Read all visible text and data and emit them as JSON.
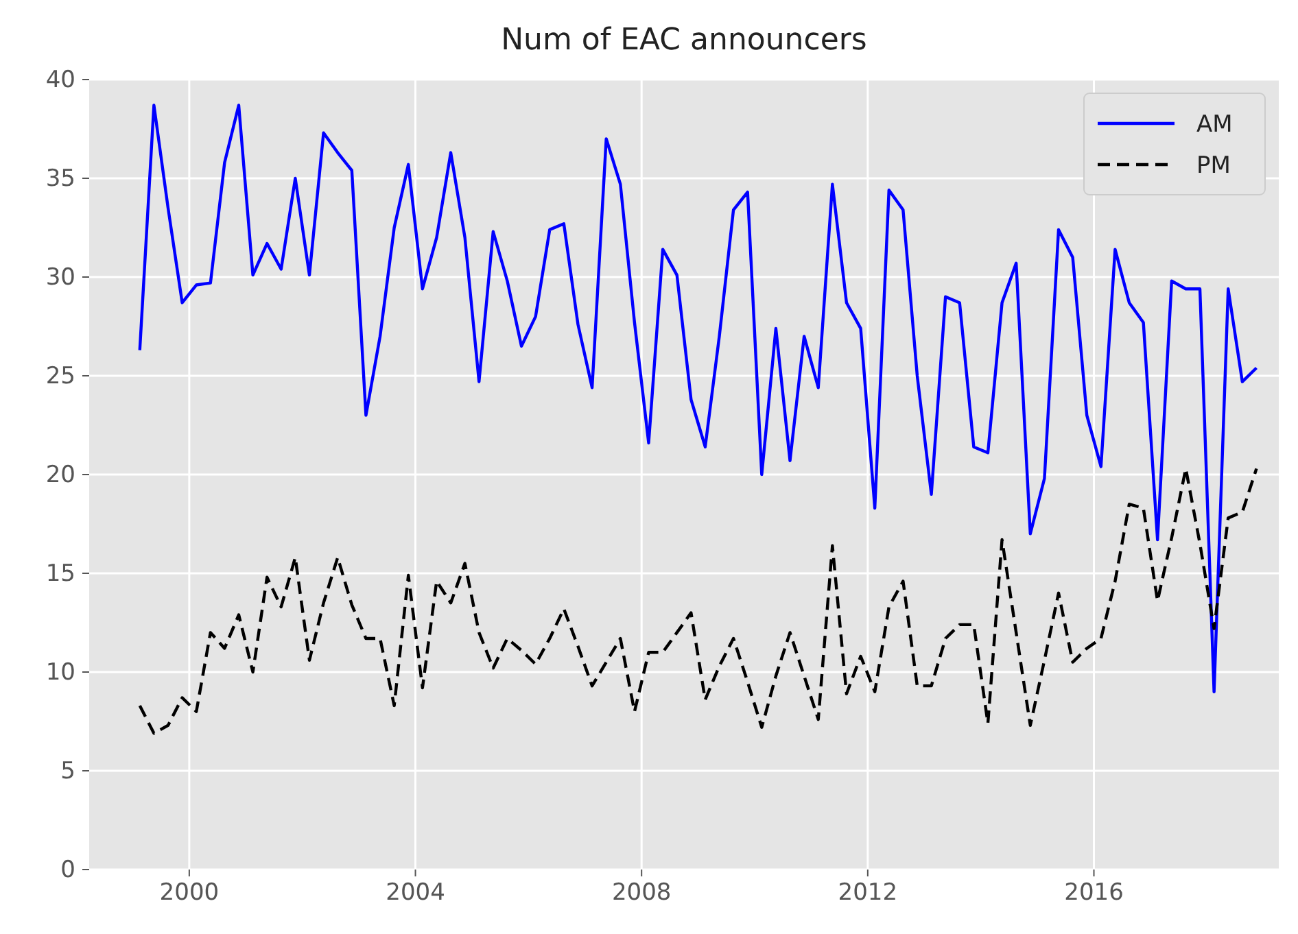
{
  "chart_data": {
    "type": "line",
    "title": "Num of EAC announcers",
    "x": [
      1999.125,
      1999.375,
      1999.625,
      1999.875,
      2000.125,
      2000.375,
      2000.625,
      2000.875,
      2001.125,
      2001.375,
      2001.625,
      2001.875,
      2002.125,
      2002.375,
      2002.625,
      2002.875,
      2003.125,
      2003.375,
      2003.625,
      2003.875,
      2004.125,
      2004.375,
      2004.625,
      2004.875,
      2005.125,
      2005.375,
      2005.625,
      2005.875,
      2006.125,
      2006.375,
      2006.625,
      2006.875,
      2007.125,
      2007.375,
      2007.625,
      2007.875,
      2008.125,
      2008.375,
      2008.625,
      2008.875,
      2009.125,
      2009.375,
      2009.625,
      2009.875,
      2010.125,
      2010.375,
      2010.625,
      2010.875,
      2011.125,
      2011.375,
      2011.625,
      2011.875,
      2012.125,
      2012.375,
      2012.625,
      2012.875,
      2013.125,
      2013.375,
      2013.625,
      2013.875,
      2014.125,
      2014.375,
      2014.625,
      2014.875,
      2015.125,
      2015.375,
      2015.625,
      2015.875,
      2016.125,
      2016.375,
      2016.625,
      2016.875,
      2017.125,
      2017.375,
      2017.625,
      2017.875,
      2018.125,
      2018.375,
      2018.625,
      2018.875
    ],
    "series": [
      {
        "name": "AM",
        "color": "#0000ff",
        "line_style": "solid",
        "values": [
          26.3,
          38.7,
          33.5,
          28.7,
          29.6,
          29.7,
          35.8,
          38.7,
          30.1,
          31.7,
          30.4,
          35.0,
          30.1,
          37.3,
          36.3,
          35.4,
          23.0,
          27.0,
          32.5,
          35.7,
          29.4,
          32.0,
          36.3,
          32.0,
          24.7,
          32.3,
          29.8,
          26.5,
          28.0,
          32.4,
          32.7,
          27.6,
          24.4,
          37.0,
          34.7,
          27.7,
          21.6,
          31.4,
          30.1,
          23.8,
          21.4,
          27.0,
          33.4,
          34.3,
          20.0,
          27.4,
          20.7,
          27.0,
          24.4,
          34.7,
          28.7,
          27.4,
          18.3,
          34.4,
          33.4,
          25.0,
          19.0,
          29.0,
          28.7,
          21.4,
          21.1,
          28.7,
          30.7,
          17.0,
          19.8,
          32.4,
          31.0,
          23.0,
          20.4,
          31.4,
          28.7,
          27.7,
          16.7,
          29.8,
          29.4,
          29.4,
          9.0,
          29.4,
          24.7,
          25.4
        ]
      },
      {
        "name": "PM",
        "color": "#000000",
        "line_style": "dashed",
        "values": [
          8.3,
          6.9,
          7.3,
          8.7,
          8.0,
          12.0,
          11.2,
          12.9,
          10.0,
          14.8,
          13.3,
          15.8,
          10.6,
          13.5,
          15.8,
          13.4,
          11.7,
          11.7,
          8.3,
          14.9,
          9.2,
          14.6,
          13.5,
          15.5,
          12.0,
          10.2,
          11.7,
          11.1,
          10.4,
          11.7,
          13.2,
          11.3,
          9.3,
          10.5,
          11.7,
          8.0,
          11.0,
          11.0,
          12.0,
          13.0,
          8.6,
          10.3,
          11.7,
          9.5,
          7.2,
          9.8,
          12.0,
          9.8,
          7.6,
          16.4,
          8.9,
          10.8,
          9.0,
          13.3,
          14.6,
          9.3,
          9.3,
          11.7,
          12.4,
          12.4,
          7.4,
          16.7,
          12.0,
          7.3,
          10.6,
          14.0,
          10.5,
          11.2,
          11.7,
          14.6,
          18.5,
          18.3,
          13.6,
          16.8,
          20.3,
          16.5,
          12.2,
          17.8,
          18.1,
          20.3
        ]
      }
    ],
    "xlim": [
      1998.23,
      2019.27
    ],
    "xticks": [
      2000,
      2004,
      2008,
      2012,
      2016
    ],
    "ylim": [
      0,
      40
    ],
    "yticks": [
      0,
      5,
      10,
      15,
      20,
      25,
      30,
      35,
      40
    ],
    "grid": true,
    "legend": "top right",
    "marker": "none"
  }
}
